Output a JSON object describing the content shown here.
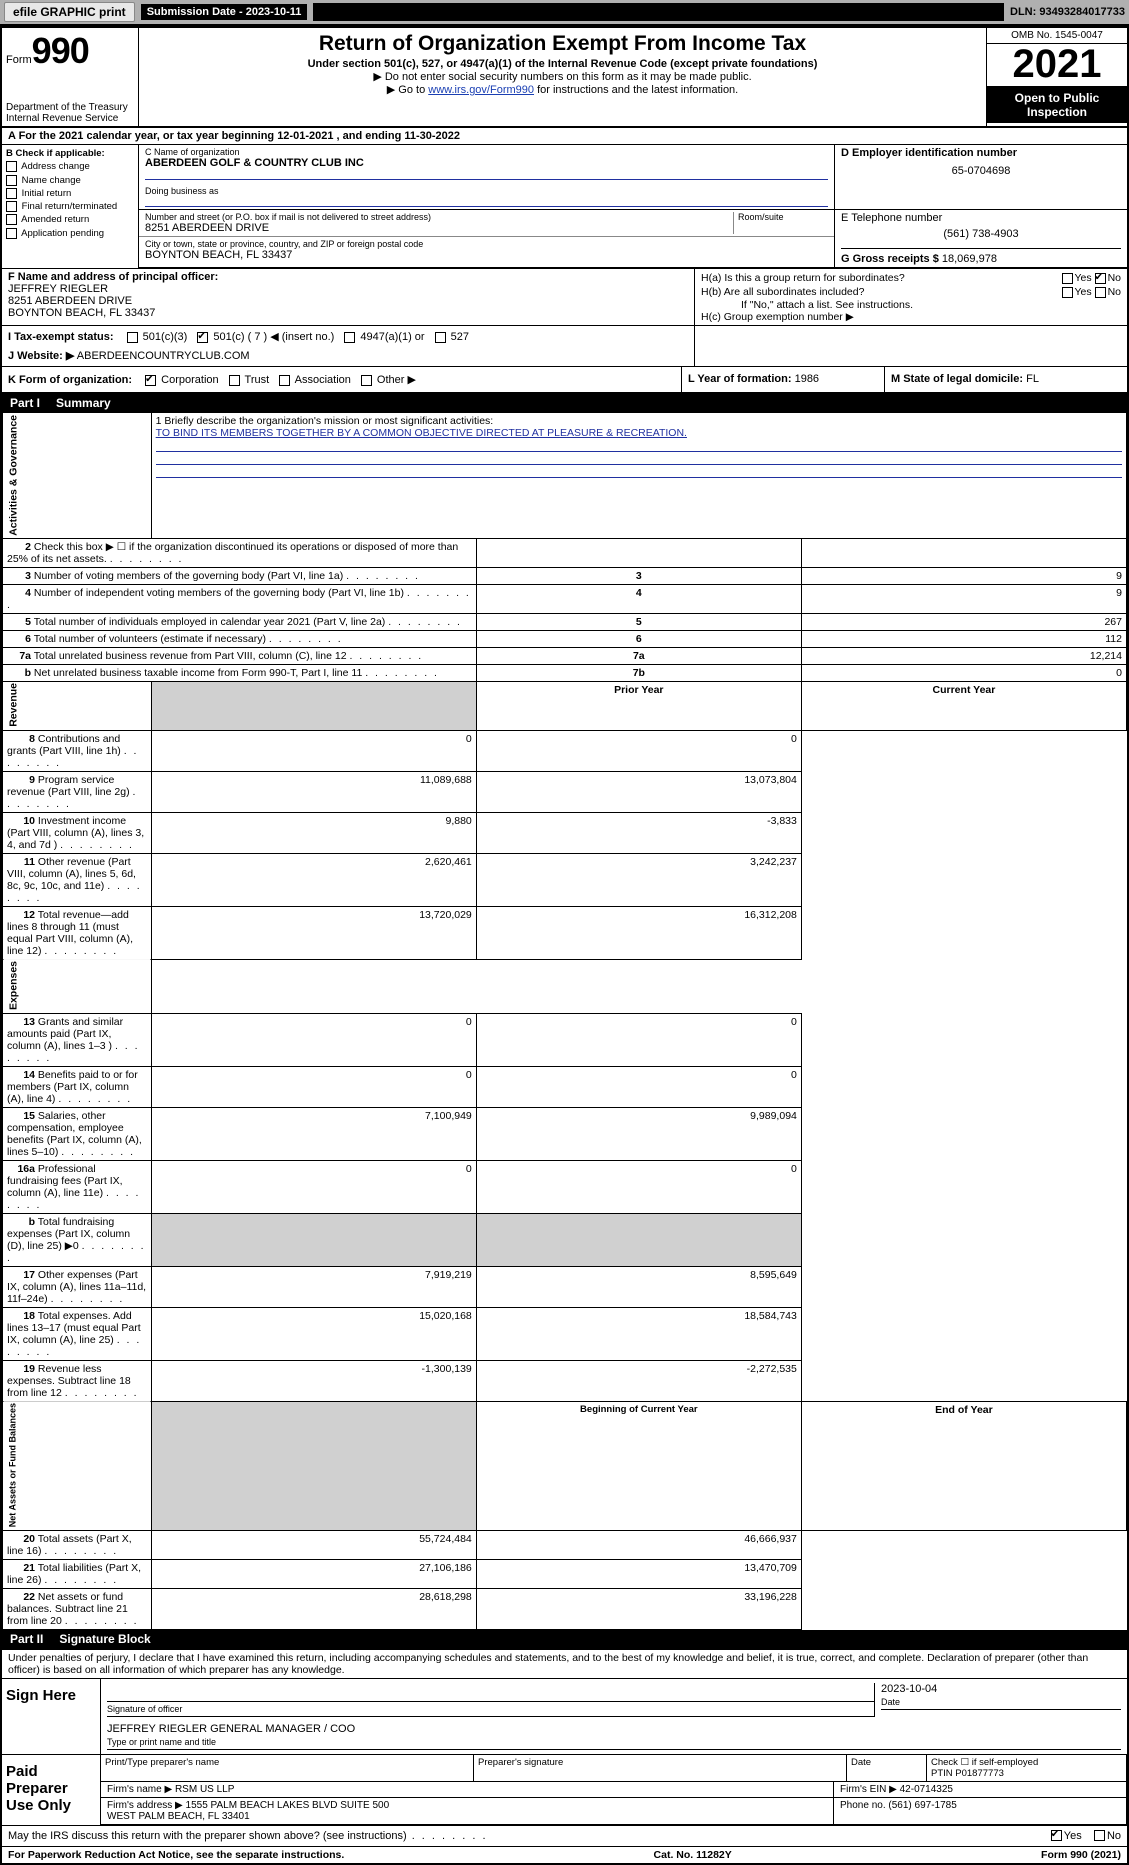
{
  "topbar": {
    "efile": "efile GRAPHIC print",
    "submission_label": "Submission Date - 2023-10-11",
    "dln": "DLN: 93493284017733"
  },
  "header": {
    "form_prefix": "Form",
    "form_number": "990",
    "dept": "Department of the Treasury",
    "irs": "Internal Revenue Service",
    "title": "Return of Organization Exempt From Income Tax",
    "sub": "Under section 501(c), 527, or 4947(a)(1) of the Internal Revenue Code (except private foundations)",
    "note1": "▶ Do not enter social security numbers on this form as it may be made public.",
    "note2_prefix": "▶ Go to ",
    "note2_link": "www.irs.gov/Form990",
    "note2_suffix": " for instructions and the latest information.",
    "omb": "OMB No. 1545-0047",
    "year": "2021",
    "open": "Open to Public Inspection"
  },
  "rowA": "A For the 2021 calendar year, or tax year beginning 12-01-2021   , and ending 11-30-2022",
  "B": {
    "label": "B Check if applicable:",
    "opts": [
      "Address change",
      "Name change",
      "Initial return",
      "Final return/terminated",
      "Amended return",
      "Application pending"
    ]
  },
  "C": {
    "name_lbl": "C Name of organization",
    "name": "ABERDEEN GOLF & COUNTRY CLUB INC",
    "dba_lbl": "Doing business as",
    "addr_lbl": "Number and street (or P.O. box if mail is not delivered to street address)",
    "room_lbl": "Room/suite",
    "addr": "8251 ABERDEEN DRIVE",
    "city_lbl": "City or town, state or province, country, and ZIP or foreign postal code",
    "city": "BOYNTON BEACH, FL  33437"
  },
  "D": {
    "lbl": "D Employer identification number",
    "val": "65-0704698"
  },
  "E": {
    "lbl": "E Telephone number",
    "val": "(561) 738-4903"
  },
  "G": {
    "lbl": "G Gross receipts $",
    "val": "18,069,978"
  },
  "F": {
    "lbl": "F  Name and address of principal officer:",
    "name": "JEFFREY RIEGLER",
    "addr1": "8251 ABERDEEN DRIVE",
    "addr2": "BOYNTON BEACH, FL  33437"
  },
  "H": {
    "a": "H(a)  Is this a group return for subordinates?",
    "a_no": "No",
    "b": "H(b)  Are all subordinates included?",
    "b_note": "If \"No,\" attach a list. See instructions.",
    "c": "H(c)  Group exemption number ▶",
    "yes": "Yes",
    "no": "No"
  },
  "I": {
    "lbl": "I     Tax-exempt status:",
    "opts": [
      "501(c)(3)",
      "501(c) ( 7 ) ◀ (insert no.)",
      "4947(a)(1) or",
      "527"
    ],
    "checked_index": 1
  },
  "J": {
    "lbl": "J    Website: ▶",
    "val": "ABERDEENCOUNTRYCLUB.COM"
  },
  "K": {
    "lbl": "K Form of organization:",
    "opts": [
      "Corporation",
      "Trust",
      "Association",
      "Other ▶"
    ],
    "checked_index": 0
  },
  "L": {
    "lbl": "L Year of formation:",
    "val": "1986"
  },
  "M": {
    "lbl": "M State of legal domicile:",
    "val": "FL"
  },
  "part1": {
    "header": "Part I",
    "title": "Summary"
  },
  "mission": {
    "lbl": "1   Briefly describe the organization's mission or most significant activities:",
    "text": "TO BIND ITS MEMBERS TOGETHER BY A COMMON OBJECTIVE DIRECTED AT PLEASURE & RECREATION."
  },
  "gov_rows": [
    {
      "n": "2",
      "desc": "Check this box ▶ ☐  if the organization discontinued its operations or disposed of more than 25% of its net assets.",
      "box": "",
      "val": ""
    },
    {
      "n": "3",
      "desc": "Number of voting members of the governing body (Part VI, line 1a)",
      "box": "3",
      "val": "9"
    },
    {
      "n": "4",
      "desc": "Number of independent voting members of the governing body (Part VI, line 1b)",
      "box": "4",
      "val": "9"
    },
    {
      "n": "5",
      "desc": "Total number of individuals employed in calendar year 2021 (Part V, line 2a)",
      "box": "5",
      "val": "267"
    },
    {
      "n": "6",
      "desc": "Total number of volunteers (estimate if necessary)",
      "box": "6",
      "val": "112"
    },
    {
      "n": "7a",
      "desc": "Total unrelated business revenue from Part VIII, column (C), line 12",
      "box": "7a",
      "val": "12,214"
    },
    {
      "n": "b",
      "desc": "Net unrelated business taxable income from Form 990-T, Part I, line 11",
      "box": "7b",
      "val": "0"
    }
  ],
  "two_col_header": {
    "prior": "Prior Year",
    "current": "Current Year"
  },
  "revenue_rows": [
    {
      "n": "8",
      "desc": "Contributions and grants (Part VIII, line 1h)",
      "p": "0",
      "c": "0"
    },
    {
      "n": "9",
      "desc": "Program service revenue (Part VIII, line 2g)",
      "p": "11,089,688",
      "c": "13,073,804"
    },
    {
      "n": "10",
      "desc": "Investment income (Part VIII, column (A), lines 3, 4, and 7d )",
      "p": "9,880",
      "c": "-3,833"
    },
    {
      "n": "11",
      "desc": "Other revenue (Part VIII, column (A), lines 5, 6d, 8c, 9c, 10c, and 11e)",
      "p": "2,620,461",
      "c": "3,242,237"
    },
    {
      "n": "12",
      "desc": "Total revenue—add lines 8 through 11 (must equal Part VIII, column (A), line 12)",
      "p": "13,720,029",
      "c": "16,312,208"
    }
  ],
  "expense_rows": [
    {
      "n": "13",
      "desc": "Grants and similar amounts paid (Part IX, column (A), lines 1–3 )",
      "p": "0",
      "c": "0"
    },
    {
      "n": "14",
      "desc": "Benefits paid to or for members (Part IX, column (A), line 4)",
      "p": "0",
      "c": "0"
    },
    {
      "n": "15",
      "desc": "Salaries, other compensation, employee benefits (Part IX, column (A), lines 5–10)",
      "p": "7,100,949",
      "c": "9,989,094"
    },
    {
      "n": "16a",
      "desc": "Professional fundraising fees (Part IX, column (A), line 11e)",
      "p": "0",
      "c": "0"
    },
    {
      "n": "b",
      "desc": "Total fundraising expenses (Part IX, column (D), line 25) ▶0",
      "p": "",
      "c": "",
      "shaded": true
    },
    {
      "n": "17",
      "desc": "Other expenses (Part IX, column (A), lines 11a–11d, 11f–24e)",
      "p": "7,919,219",
      "c": "8,595,649"
    },
    {
      "n": "18",
      "desc": "Total expenses. Add lines 13–17 (must equal Part IX, column (A), line 25)",
      "p": "15,020,168",
      "c": "18,584,743"
    },
    {
      "n": "19",
      "desc": "Revenue less expenses. Subtract line 18 from line 12",
      "p": "-1,300,139",
      "c": "-2,272,535"
    }
  ],
  "na_header": {
    "begin": "Beginning of Current Year",
    "end": "End of Year"
  },
  "na_rows": [
    {
      "n": "20",
      "desc": "Total assets (Part X, line 16)",
      "p": "55,724,484",
      "c": "46,666,937"
    },
    {
      "n": "21",
      "desc": "Total liabilities (Part X, line 26)",
      "p": "27,106,186",
      "c": "13,470,709"
    },
    {
      "n": "22",
      "desc": "Net assets or fund balances. Subtract line 21 from line 20",
      "p": "28,618,298",
      "c": "33,196,228"
    }
  ],
  "part2": {
    "header": "Part II",
    "title": "Signature Block"
  },
  "penalties": "Under penalties of perjury, I declare that I have examined this return, including accompanying schedules and statements, and to the best of my knowledge and belief, it is true, correct, and complete. Declaration of preparer (other than officer) is based on all information of which preparer has any knowledge.",
  "sign": {
    "here": "Sign Here",
    "sig_lbl": "Signature of officer",
    "date_lbl": "Date",
    "date": "2023-10-04",
    "name": "JEFFREY RIEGLER  GENERAL MANAGER / COO",
    "name_lbl": "Type or print name and title"
  },
  "preparer": {
    "label": "Paid Preparer Use Only",
    "h1": "Print/Type preparer's name",
    "h2": "Preparer's signature",
    "h3": "Date",
    "h4_check": "Check ☐ if self-employed",
    "h4_ptin_lbl": "PTIN",
    "ptin": "P01877773",
    "firm_name_lbl": "Firm's name    ▶",
    "firm_name": "RSM US LLP",
    "firm_ein_lbl": "Firm's EIN ▶",
    "firm_ein": "42-0714325",
    "firm_addr_lbl": "Firm's address ▶",
    "firm_addr": "1555 PALM BEACH LAKES BLVD SUITE 500\nWEST PALM BEACH, FL  33401",
    "phone_lbl": "Phone no.",
    "phone": "(561) 697-1785"
  },
  "discuss": {
    "text": "May the IRS discuss this return with the preparer shown above? (see instructions)",
    "yes": "Yes",
    "no": "No"
  },
  "footer": {
    "left": "For Paperwork Reduction Act Notice, see the separate instructions.",
    "mid": "Cat. No. 11282Y",
    "right": "Form 990 (2021)"
  },
  "colors": {
    "link": "#1a3fb3",
    "line_blue": "#2030a0",
    "shaded": "#d0d0d0"
  }
}
